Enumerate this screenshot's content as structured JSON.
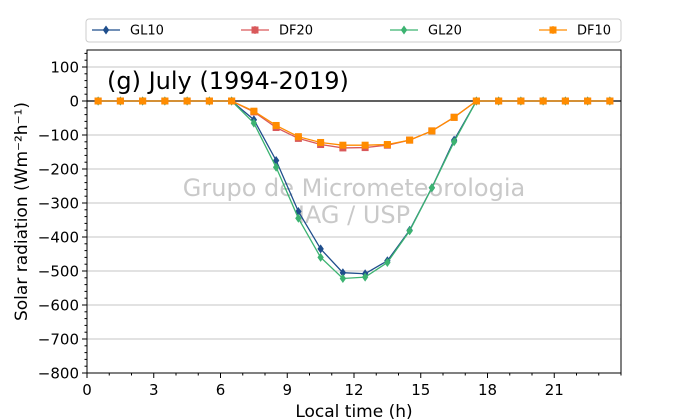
{
  "chart_data": {
    "type": "line",
    "title": "(g) July (1994-2019)",
    "xlabel": "Local time (h)",
    "ylabel": "Solar radiation (Wm⁻²h⁻¹)",
    "xlim": [
      0,
      24
    ],
    "ylim": [
      -800,
      150
    ],
    "xticks": [
      0,
      3,
      6,
      9,
      12,
      15,
      18,
      21
    ],
    "yticks": [
      100,
      0,
      -100,
      -200,
      -300,
      -400,
      -500,
      -600,
      -700,
      -800
    ],
    "ytick_labels": [
      "100",
      "0",
      "−100",
      "−200",
      "−300",
      "−400",
      "−500",
      "−600",
      "−700",
      "−800"
    ],
    "grid": "horizontal",
    "zero_line": 0,
    "legend_position": "top, outside",
    "watermark": [
      "Grupo de Micrometeorologia",
      "IAG / USP"
    ],
    "x": [
      0.5,
      1.5,
      2.5,
      3.5,
      4.5,
      5.5,
      6.5,
      7.5,
      8.5,
      9.5,
      10.5,
      11.5,
      12.5,
      13.5,
      14.5,
      15.5,
      16.5,
      17.5,
      18.5,
      19.5,
      20.5,
      21.5,
      22.5,
      23.5
    ],
    "series": [
      {
        "name": "GL10",
        "color": "#1f4e8c",
        "marker": "diamond",
        "values": [
          0,
          0,
          0,
          0,
          0,
          0,
          0,
          -55,
          -175,
          -325,
          -435,
          -505,
          -508,
          -470,
          -380,
          -255,
          -115,
          0,
          0,
          0,
          0,
          0,
          0,
          0
        ]
      },
      {
        "name": "DF20",
        "color": "#d9595b",
        "marker": "square",
        "values": [
          0,
          0,
          0,
          0,
          0,
          0,
          0,
          -32,
          -78,
          -110,
          -128,
          -138,
          -137,
          -130,
          -115,
          -88,
          -48,
          0,
          0,
          0,
          0,
          0,
          0,
          0
        ]
      },
      {
        "name": "GL20",
        "color": "#3cb371",
        "marker": "diamond",
        "values": [
          0,
          0,
          0,
          0,
          0,
          0,
          0,
          -65,
          -195,
          -345,
          -460,
          -522,
          -518,
          -475,
          -382,
          -255,
          -120,
          0,
          0,
          0,
          0,
          0,
          0,
          0
        ]
      },
      {
        "name": "DF10",
        "color": "#ff8c00",
        "marker": "square",
        "values": [
          0,
          0,
          0,
          0,
          0,
          0,
          0,
          -30,
          -72,
          -105,
          -122,
          -130,
          -130,
          -128,
          -115,
          -88,
          -48,
          0,
          0,
          0,
          0,
          0,
          0,
          0
        ]
      }
    ]
  }
}
